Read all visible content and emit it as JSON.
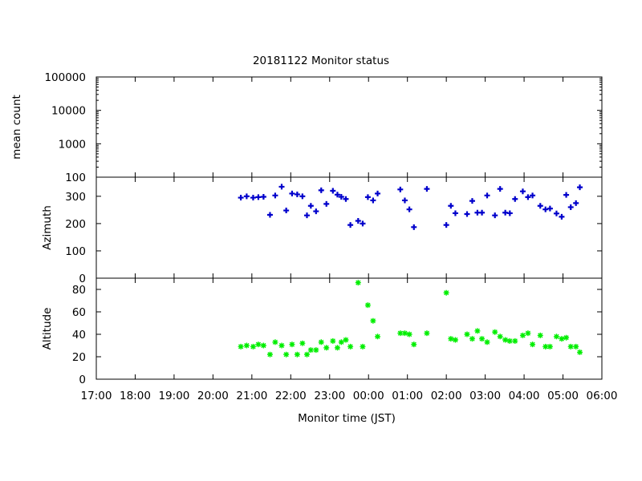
{
  "chart_data": {
    "title": "20181122 Monitor status",
    "xlabel": "Monitor time (JST)",
    "x_ticks": [
      "17:00",
      "18:00",
      "19:00",
      "20:00",
      "21:00",
      "22:00",
      "23:00",
      "00:00",
      "01:00",
      "02:00",
      "03:00",
      "04:00",
      "05:00",
      "06:00"
    ],
    "panels": [
      {
        "type": "scatter",
        "ylabel": "mean count",
        "yscale": "log",
        "ylim": [
          100,
          100000
        ],
        "y_ticks": [
          "100000",
          "10000",
          "1000",
          "100"
        ],
        "y_tick_values": [
          100000,
          10000,
          1000,
          100
        ],
        "series": []
      },
      {
        "type": "scatter",
        "ylabel": "Azimuth",
        "ylim": [
          0,
          370
        ],
        "y_ticks": [
          "300",
          "200",
          "100",
          "0"
        ],
        "y_tick_values": [
          300,
          200,
          100,
          0
        ],
        "series": [
          {
            "color": "#0000cc",
            "marker": "plus",
            "points": [
              [
                "20:43",
                295
              ],
              [
                "20:52",
                300
              ],
              [
                "21:02",
                295
              ],
              [
                "21:10",
                297
              ],
              [
                "21:18",
                298
              ],
              [
                "21:28",
                232
              ],
              [
                "21:36",
                303
              ],
              [
                "21:46",
                335
              ],
              [
                "21:53",
                248
              ],
              [
                "22:02",
                310
              ],
              [
                "22:10",
                307
              ],
              [
                "22:18",
                300
              ],
              [
                "22:25",
                230
              ],
              [
                "22:31",
                265
              ],
              [
                "22:39",
                245
              ],
              [
                "22:47",
                322
              ],
              [
                "22:55",
                272
              ],
              [
                "23:05",
                320
              ],
              [
                "23:12",
                306
              ],
              [
                "23:18",
                298
              ],
              [
                "23:25",
                290
              ],
              [
                "23:32",
                195
              ],
              [
                "23:44",
                210
              ],
              [
                "23:51",
                200
              ],
              [
                "23:59",
                297
              ],
              [
                "00:07",
                285
              ],
              [
                "00:14",
                310
              ],
              [
                "00:49",
                325
              ],
              [
                "00:56",
                285
              ],
              [
                "01:03",
                252
              ],
              [
                "01:10",
                187
              ],
              [
                "01:30",
                327
              ],
              [
                "02:00",
                195
              ],
              [
                "02:07",
                265
              ],
              [
                "02:14",
                238
              ],
              [
                "02:32",
                235
              ],
              [
                "02:40",
                283
              ],
              [
                "02:48",
                240
              ],
              [
                "02:55",
                240
              ],
              [
                "03:03",
                303
              ],
              [
                "03:15",
                230
              ],
              [
                "03:23",
                327
              ],
              [
                "03:31",
                240
              ],
              [
                "03:38",
                238
              ],
              [
                "03:46",
                290
              ],
              [
                "03:58",
                318
              ],
              [
                "04:06",
                297
              ],
              [
                "04:13",
                303
              ],
              [
                "04:25",
                265
              ],
              [
                "04:33",
                252
              ],
              [
                "04:40",
                255
              ],
              [
                "04:50",
                237
              ],
              [
                "04:58",
                225
              ],
              [
                "05:05",
                305
              ],
              [
                "05:12",
                260
              ],
              [
                "05:20",
                275
              ],
              [
                "05:26",
                333
              ]
            ]
          }
        ]
      },
      {
        "type": "scatter",
        "ylabel": "Altitude",
        "ylim": [
          0,
          90
        ],
        "y_ticks": [
          "80",
          "60",
          "40",
          "20",
          "0"
        ],
        "y_tick_values": [
          80,
          60,
          40,
          20,
          0
        ],
        "series": [
          {
            "color": "#00ee00",
            "marker": "star",
            "points": [
              [
                "20:43",
                29
              ],
              [
                "20:52",
                30
              ],
              [
                "21:02",
                29
              ],
              [
                "21:10",
                31
              ],
              [
                "21:18",
                30
              ],
              [
                "21:28",
                22
              ],
              [
                "21:36",
                33
              ],
              [
                "21:46",
                30
              ],
              [
                "21:53",
                22
              ],
              [
                "22:02",
                31
              ],
              [
                "22:10",
                22
              ],
              [
                "22:18",
                32
              ],
              [
                "22:25",
                22
              ],
              [
                "22:31",
                26
              ],
              [
                "22:39",
                26
              ],
              [
                "22:47",
                33
              ],
              [
                "22:55",
                28
              ],
              [
                "23:05",
                34
              ],
              [
                "23:12",
                28
              ],
              [
                "23:18",
                33
              ],
              [
                "23:25",
                35
              ],
              [
                "23:32",
                29
              ],
              [
                "23:44",
                86
              ],
              [
                "23:51",
                29
              ],
              [
                "23:59",
                66
              ],
              [
                "00:07",
                52
              ],
              [
                "00:14",
                38
              ],
              [
                "00:49",
                41
              ],
              [
                "00:56",
                41
              ],
              [
                "01:03",
                40
              ],
              [
                "01:10",
                31
              ],
              [
                "01:30",
                41
              ],
              [
                "02:00",
                77
              ],
              [
                "02:07",
                36
              ],
              [
                "02:14",
                35
              ],
              [
                "02:32",
                40
              ],
              [
                "02:40",
                36
              ],
              [
                "02:48",
                43
              ],
              [
                "02:55",
                36
              ],
              [
                "03:03",
                33
              ],
              [
                "03:15",
                42
              ],
              [
                "03:23",
                38
              ],
              [
                "03:31",
                35
              ],
              [
                "03:38",
                34
              ],
              [
                "03:46",
                34
              ],
              [
                "03:58",
                39
              ],
              [
                "04:06",
                41
              ],
              [
                "04:13",
                31
              ],
              [
                "04:25",
                39
              ],
              [
                "04:33",
                29
              ],
              [
                "04:40",
                29
              ],
              [
                "04:50",
                38
              ],
              [
                "04:58",
                36
              ],
              [
                "05:05",
                37
              ],
              [
                "05:12",
                29
              ],
              [
                "05:20",
                29
              ],
              [
                "05:26",
                24
              ]
            ]
          }
        ]
      }
    ]
  }
}
